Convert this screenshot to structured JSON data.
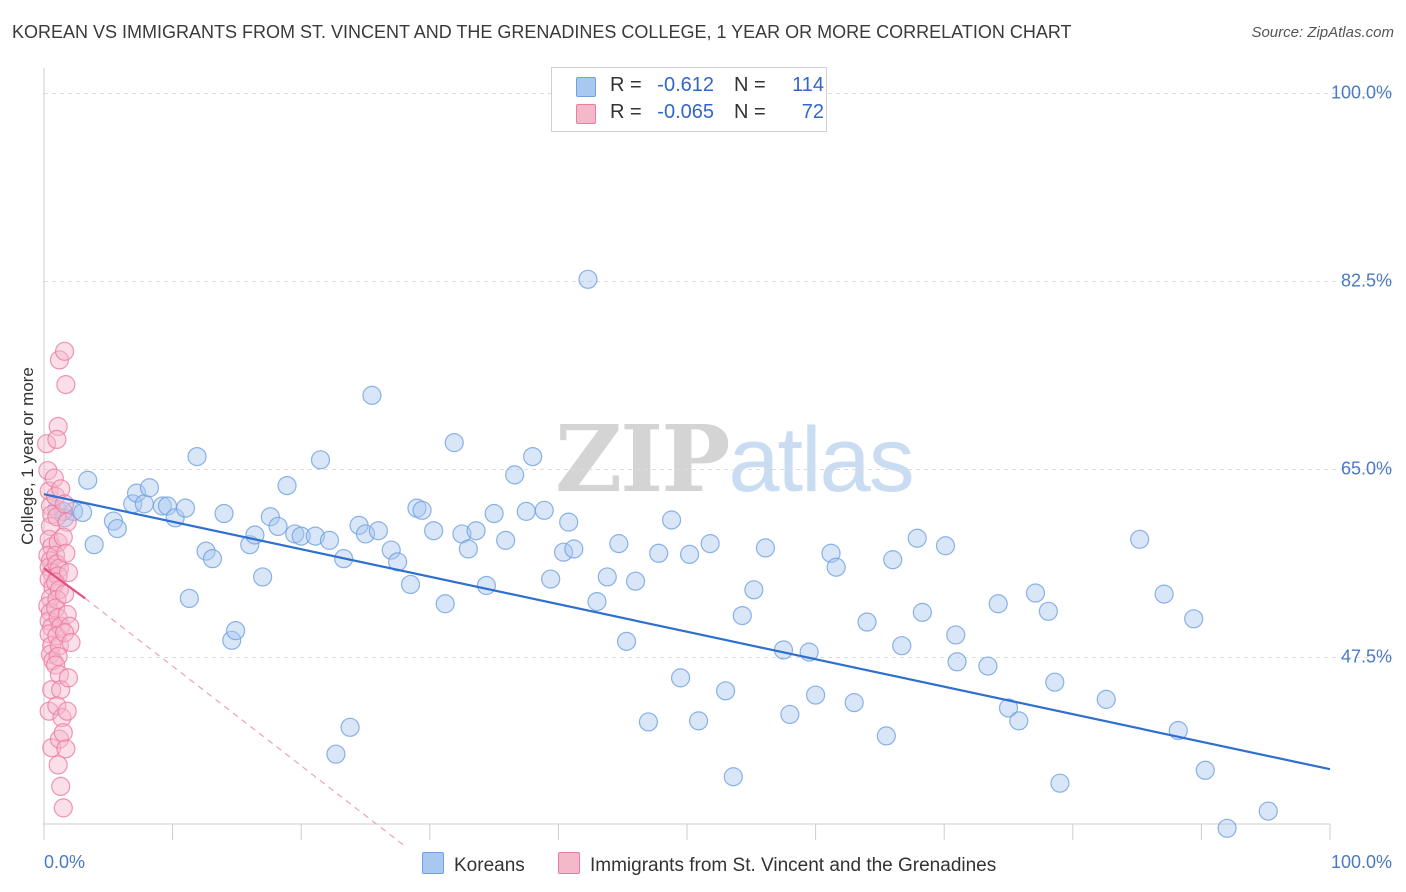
{
  "title": "KOREAN VS IMMIGRANTS FROM ST. VINCENT AND THE GRENADINES COLLEGE, 1 YEAR OR MORE CORRELATION CHART",
  "source": "Source: ZipAtlas.com",
  "watermark": {
    "zip": "ZIP",
    "atlas": "atlas"
  },
  "legend": {
    "r_label": "R =",
    "n_label": "N =",
    "rows": [
      {
        "r": "-0.612",
        "n": "114",
        "color": "#a9c8f0"
      },
      {
        "r": "-0.065",
        "n": "72",
        "color": "#f4b8cb"
      }
    ]
  },
  "bottom_legend": [
    {
      "label": "Koreans",
      "color": "#a9c8f0"
    },
    {
      "label": "Immigrants from St. Vincent and the Grenadines",
      "color": "#f4b8cb"
    }
  ],
  "chart_data": {
    "type": "scatter",
    "ylabel": "College, 1 year or more",
    "xlim": [
      0,
      100
    ],
    "ylim": [
      32,
      102
    ],
    "x_tick_labels": [
      "0.0%",
      "100.0%"
    ],
    "y_ticks": [
      {
        "value": 100,
        "label": "100.0%"
      },
      {
        "value": 82.5,
        "label": "82.5%"
      },
      {
        "value": 65,
        "label": "65.0%"
      },
      {
        "value": 47.5,
        "label": "47.5%"
      }
    ],
    "grid": "horizontal-dashed",
    "legend_position": "top-center",
    "series": [
      {
        "name": "Koreans",
        "color": "#6fa0e0",
        "fill": "#a9c8f0",
        "trend": {
          "x": [
            0,
            100
          ],
          "y": [
            62.7,
            37.1
          ]
        },
        "points": [
          [
            1.0,
            61.3
          ],
          [
            1.6,
            60.5
          ],
          [
            2.3,
            61.1
          ],
          [
            3.0,
            61.0
          ],
          [
            3.4,
            64.0
          ],
          [
            3.9,
            58.0
          ],
          [
            5.4,
            60.2
          ],
          [
            5.7,
            59.5
          ],
          [
            6.9,
            61.8
          ],
          [
            7.2,
            62.8
          ],
          [
            7.8,
            61.8
          ],
          [
            8.2,
            63.3
          ],
          [
            9.2,
            61.6
          ],
          [
            9.6,
            61.6
          ],
          [
            10.2,
            60.5
          ],
          [
            11.0,
            61.4
          ],
          [
            11.3,
            53.0
          ],
          [
            11.9,
            66.2
          ],
          [
            12.6,
            57.4
          ],
          [
            13.1,
            56.7
          ],
          [
            14.0,
            60.9
          ],
          [
            14.6,
            49.1
          ],
          [
            14.9,
            50.0
          ],
          [
            16.0,
            58.0
          ],
          [
            16.4,
            58.9
          ],
          [
            17.0,
            55.0
          ],
          [
            17.6,
            60.6
          ],
          [
            18.2,
            59.7
          ],
          [
            18.9,
            63.5
          ],
          [
            19.5,
            59.0
          ],
          [
            20.0,
            58.8
          ],
          [
            21.1,
            58.8
          ],
          [
            21.5,
            65.9
          ],
          [
            22.2,
            58.4
          ],
          [
            22.7,
            38.5
          ],
          [
            23.3,
            56.7
          ],
          [
            23.8,
            41.0
          ],
          [
            24.5,
            59.8
          ],
          [
            25.0,
            59.0
          ],
          [
            25.5,
            71.9
          ],
          [
            26.0,
            59.3
          ],
          [
            27.0,
            57.5
          ],
          [
            27.5,
            56.4
          ],
          [
            28.5,
            54.3
          ],
          [
            29.0,
            61.4
          ],
          [
            29.4,
            61.2
          ],
          [
            30.3,
            59.3
          ],
          [
            31.2,
            52.5
          ],
          [
            31.9,
            67.5
          ],
          [
            32.5,
            59.0
          ],
          [
            33.0,
            57.6
          ],
          [
            33.6,
            59.3
          ],
          [
            34.4,
            54.2
          ],
          [
            35.0,
            60.9
          ],
          [
            35.9,
            58.4
          ],
          [
            36.6,
            64.5
          ],
          [
            37.5,
            61.1
          ],
          [
            38.0,
            66.2
          ],
          [
            38.9,
            61.2
          ],
          [
            39.4,
            54.8
          ],
          [
            40.4,
            57.3
          ],
          [
            40.8,
            60.1
          ],
          [
            41.2,
            57.6
          ],
          [
            42.3,
            82.7
          ],
          [
            43.0,
            52.7
          ],
          [
            43.8,
            55.0
          ],
          [
            44.7,
            58.1
          ],
          [
            45.3,
            49.0
          ],
          [
            46.0,
            54.6
          ],
          [
            47.0,
            41.5
          ],
          [
            47.8,
            57.2
          ],
          [
            48.8,
            60.3
          ],
          [
            49.5,
            45.6
          ],
          [
            50.2,
            57.1
          ],
          [
            50.9,
            41.6
          ],
          [
            51.8,
            58.1
          ],
          [
            53.0,
            44.4
          ],
          [
            53.6,
            36.4
          ],
          [
            54.3,
            51.4
          ],
          [
            55.2,
            53.8
          ],
          [
            56.1,
            57.7
          ],
          [
            57.5,
            48.2
          ],
          [
            58.0,
            42.2
          ],
          [
            59.5,
            48.0
          ],
          [
            60.0,
            44.0
          ],
          [
            61.2,
            57.2
          ],
          [
            61.6,
            55.9
          ],
          [
            63.0,
            43.3
          ],
          [
            64.0,
            50.8
          ],
          [
            65.5,
            40.2
          ],
          [
            66.0,
            56.6
          ],
          [
            66.7,
            48.6
          ],
          [
            67.9,
            58.6
          ],
          [
            68.3,
            51.7
          ],
          [
            70.1,
            57.9
          ],
          [
            70.9,
            49.6
          ],
          [
            71.0,
            47.1
          ],
          [
            73.4,
            46.7
          ],
          [
            74.2,
            52.5
          ],
          [
            75.0,
            42.8
          ],
          [
            75.8,
            41.6
          ],
          [
            77.1,
            53.5
          ],
          [
            78.1,
            51.8
          ],
          [
            78.6,
            45.2
          ],
          [
            79.0,
            35.8
          ],
          [
            82.6,
            43.6
          ],
          [
            85.2,
            58.5
          ],
          [
            87.1,
            53.4
          ],
          [
            88.2,
            40.7
          ],
          [
            89.4,
            51.1
          ],
          [
            90.3,
            37.0
          ],
          [
            92.0,
            31.6
          ],
          [
            95.2,
            33.2
          ],
          [
            1.5,
            61.1
          ]
        ]
      },
      {
        "name": "Immigrants from St. Vincent and the Grenadines",
        "color": "#ee7aa0",
        "fill": "#f4b8cb",
        "trend": {
          "x": [
            0,
            3.2
          ],
          "y": [
            55.8,
            53.0
          ]
        },
        "trend_extension": {
          "x": [
            3.2,
            28
          ],
          "y": [
            53.0,
            30.0
          ]
        },
        "points": [
          [
            0.2,
            67.4
          ],
          [
            0.3,
            64.9
          ],
          [
            0.4,
            63.0
          ],
          [
            0.5,
            61.6
          ],
          [
            0.6,
            60.8
          ],
          [
            0.5,
            59.7
          ],
          [
            0.4,
            58.5
          ],
          [
            0.6,
            57.8
          ],
          [
            0.3,
            57.0
          ],
          [
            0.5,
            56.5
          ],
          [
            0.4,
            55.9
          ],
          [
            0.6,
            55.4
          ],
          [
            0.4,
            54.8
          ],
          [
            0.7,
            54.1
          ],
          [
            0.5,
            53.0
          ],
          [
            0.3,
            52.3
          ],
          [
            0.5,
            51.7
          ],
          [
            0.4,
            50.9
          ],
          [
            0.6,
            50.3
          ],
          [
            0.4,
            49.7
          ],
          [
            0.6,
            48.6
          ],
          [
            0.5,
            47.8
          ],
          [
            0.7,
            47.2
          ],
          [
            0.6,
            44.5
          ],
          [
            0.4,
            42.5
          ],
          [
            0.6,
            39.1
          ],
          [
            0.8,
            64.2
          ],
          [
            0.9,
            62.5
          ],
          [
            1.0,
            60.6
          ],
          [
            1.1,
            58.2
          ],
          [
            0.9,
            57.0
          ],
          [
            1.0,
            56.2
          ],
          [
            1.2,
            55.8
          ],
          [
            1.1,
            55.1
          ],
          [
            0.9,
            54.5
          ],
          [
            1.2,
            53.8
          ],
          [
            1.0,
            52.9
          ],
          [
            0.9,
            52.1
          ],
          [
            1.1,
            51.2
          ],
          [
            1.3,
            50.4
          ],
          [
            1.0,
            49.5
          ],
          [
            1.2,
            48.6
          ],
          [
            1.1,
            47.6
          ],
          [
            0.9,
            46.8
          ],
          [
            1.2,
            45.9
          ],
          [
            1.3,
            44.5
          ],
          [
            1.0,
            43.0
          ],
          [
            1.4,
            41.9
          ],
          [
            1.2,
            39.9
          ],
          [
            1.1,
            37.5
          ],
          [
            1.3,
            35.5
          ],
          [
            1.5,
            33.5
          ],
          [
            1.2,
            75.2
          ],
          [
            1.6,
            76.0
          ],
          [
            1.7,
            72.9
          ],
          [
            1.1,
            69.0
          ],
          [
            1.0,
            67.8
          ],
          [
            1.3,
            63.2
          ],
          [
            1.6,
            61.8
          ],
          [
            1.8,
            60.1
          ],
          [
            1.5,
            58.7
          ],
          [
            1.7,
            57.2
          ],
          [
            1.9,
            55.4
          ],
          [
            1.6,
            53.4
          ],
          [
            1.8,
            51.5
          ],
          [
            2.0,
            50.4
          ],
          [
            1.6,
            49.8
          ],
          [
            2.1,
            48.9
          ],
          [
            1.9,
            45.6
          ],
          [
            1.8,
            42.5
          ],
          [
            1.5,
            40.5
          ],
          [
            1.7,
            39.0
          ]
        ]
      }
    ]
  }
}
